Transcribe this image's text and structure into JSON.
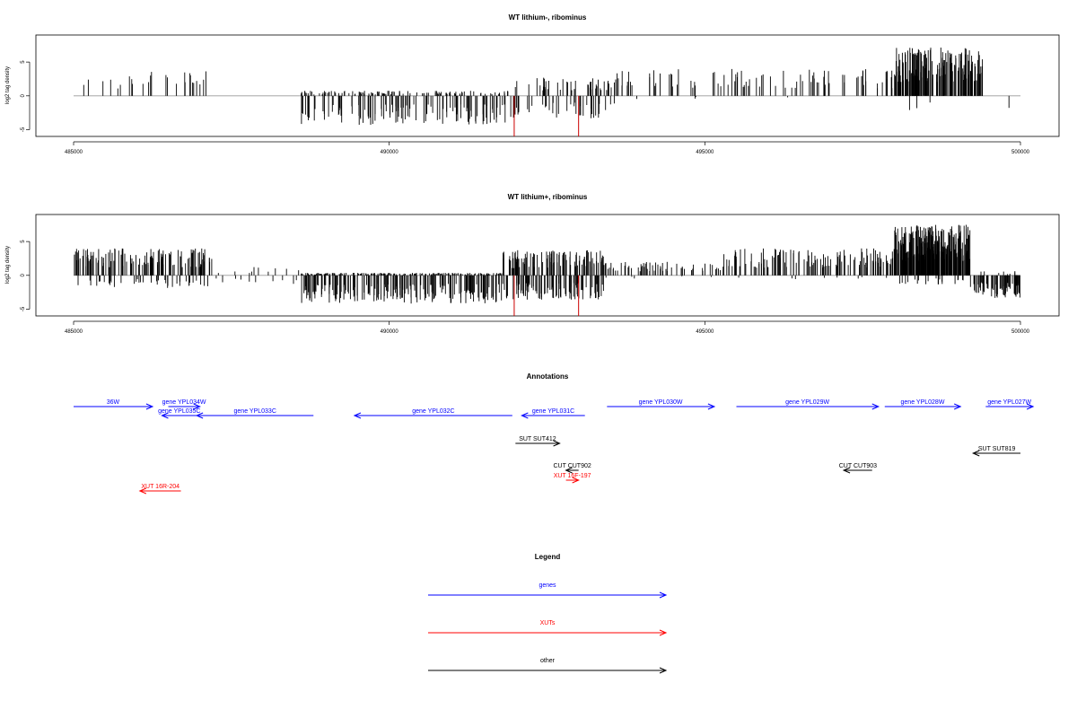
{
  "colors": {
    "genes": "#0000ff",
    "xuts": "#ff0000",
    "other": "#000000",
    "baseline": "#999999",
    "signal": "#000000",
    "marker": "#cc0000"
  },
  "chart_data": [
    {
      "type": "bar",
      "title": "WT lithium-, ribominus",
      "ylabel": "log2 tag density",
      "xlim": [
        485000,
        500000
      ],
      "ylim": [
        -6,
        9
      ],
      "xticks": [
        "485000",
        "490000",
        "495000",
        "500000"
      ],
      "yticks": [
        "-5",
        "0",
        "5"
      ],
      "segments": [
        {
          "x0": 485100,
          "x1": 487300,
          "pos": 3,
          "neg": 0,
          "n": 26,
          "neg_n": 2
        },
        {
          "x0": 488600,
          "x1": 491900,
          "pos": 0.6,
          "neg": 3.6,
          "n": 120,
          "neg_n": 120
        },
        {
          "x0": 491900,
          "x1": 493600,
          "pos": 2.2,
          "neg": 2.8,
          "n": 50,
          "neg_n": 40
        },
        {
          "x0": 493600,
          "x1": 498000,
          "pos": 3.2,
          "neg": 0.4,
          "n": 90,
          "neg_n": 4
        },
        {
          "x0": 498000,
          "x1": 499400,
          "pos": 5.8,
          "neg": 2.0,
          "n": 160,
          "neg_n": 3
        },
        {
          "x0": 499400,
          "x1": 500000,
          "pos": 0,
          "neg": 1.5,
          "n": 0,
          "neg_n": 1
        }
      ],
      "markers": [
        491980,
        493000
      ],
      "marker_depth": -6
    },
    {
      "type": "bar",
      "title": "WT lithium+, ribominus",
      "ylabel": "log2 tag density",
      "xlim": [
        485000,
        500000
      ],
      "ylim": [
        -6,
        9
      ],
      "xticks": [
        "485000",
        "490000",
        "495000",
        "500000"
      ],
      "yticks": [
        "-5",
        "0",
        "5"
      ],
      "segments": [
        {
          "x0": 485000,
          "x1": 487200,
          "pos": 3.2,
          "neg": 1.6,
          "n": 130,
          "neg_n": 40
        },
        {
          "x0": 487200,
          "x1": 488600,
          "pos": 1.0,
          "neg": 1.2,
          "n": 10,
          "neg_n": 10
        },
        {
          "x0": 488600,
          "x1": 491800,
          "pos": 0.3,
          "neg": 3.5,
          "n": 200,
          "neg_n": 200
        },
        {
          "x0": 491800,
          "x1": 493400,
          "pos": 3.0,
          "neg": 3.0,
          "n": 110,
          "neg_n": 90
        },
        {
          "x0": 493400,
          "x1": 495300,
          "pos": 1.6,
          "neg": 0.4,
          "n": 60,
          "neg_n": 5
        },
        {
          "x0": 495300,
          "x1": 498000,
          "pos": 3.2,
          "neg": 0.6,
          "n": 120,
          "neg_n": 8
        },
        {
          "x0": 498000,
          "x1": 499200,
          "pos": 6.0,
          "neg": 1.2,
          "n": 240,
          "neg_n": 20
        },
        {
          "x0": 499200,
          "x1": 500000,
          "pos": 0.5,
          "neg": 2.8,
          "n": 8,
          "neg_n": 70
        }
      ],
      "markers": [
        491980,
        493000
      ],
      "marker_depth": -6
    }
  ],
  "annotations": {
    "title": "Annotations",
    "items": [
      {
        "label": "36W",
        "color": "genes",
        "row": 0,
        "x0": 485000,
        "x1": 486250,
        "dir": "right"
      },
      {
        "label": "gene YPL034W",
        "color": "genes",
        "row": 0,
        "x0": 486500,
        "x1": 487000,
        "dir": "right"
      },
      {
        "label": "gene YPL035C",
        "color": "genes",
        "row": 1,
        "x0": 486400,
        "x1": 486950,
        "dir": "left"
      },
      {
        "label": "gene YPL033C",
        "color": "genes",
        "row": 1,
        "x0": 486950,
        "x1": 488800,
        "dir": "left"
      },
      {
        "label": "gene YPL032C",
        "color": "genes",
        "row": 1,
        "x0": 489450,
        "x1": 491950,
        "dir": "left"
      },
      {
        "label": "gene YPL031C",
        "color": "genes",
        "row": 1,
        "x0": 492100,
        "x1": 493100,
        "dir": "left"
      },
      {
        "label": "gene YPL030W",
        "color": "genes",
        "row": 0,
        "x0": 493450,
        "x1": 495150,
        "dir": "right"
      },
      {
        "label": "gene YPL029W",
        "color": "genes",
        "row": 0,
        "x0": 495500,
        "x1": 497750,
        "dir": "right"
      },
      {
        "label": "gene YPL028W",
        "color": "genes",
        "row": 0,
        "x0": 497850,
        "x1": 499050,
        "dir": "right"
      },
      {
        "label": "gene YPL027W",
        "color": "genes",
        "row": 0,
        "x0": 499450,
        "x1": 500200,
        "dir": "right"
      },
      {
        "label": "SUT SUT412",
        "color": "other",
        "row": 2,
        "x0": 492000,
        "x1": 492700,
        "dir": "right"
      },
      {
        "label": "SUT SUT819",
        "color": "other",
        "row": 3,
        "x0": 499250,
        "x1": 500000,
        "dir": "left"
      },
      {
        "label": "CUT CUT902",
        "color": "other",
        "row": 4,
        "x0": 492800,
        "x1": 493000,
        "dir": "left"
      },
      {
        "label": "CUT CUT903",
        "color": "other",
        "row": 4,
        "x0": 497200,
        "x1": 497650,
        "dir": "left"
      },
      {
        "label": "XUT 16F-197",
        "color": "xuts",
        "row": 5,
        "x0": 492800,
        "x1": 493000,
        "dir": "right"
      },
      {
        "label": "XUT 16R-204",
        "color": "xuts",
        "row": 6,
        "x0": 486050,
        "x1": 486700,
        "dir": "left"
      }
    ]
  },
  "legend": {
    "title": "Legend",
    "entries": [
      {
        "label": "genes",
        "color": "genes"
      },
      {
        "label": "XUTs",
        "color": "xuts"
      },
      {
        "label": "other",
        "color": "other"
      }
    ]
  }
}
